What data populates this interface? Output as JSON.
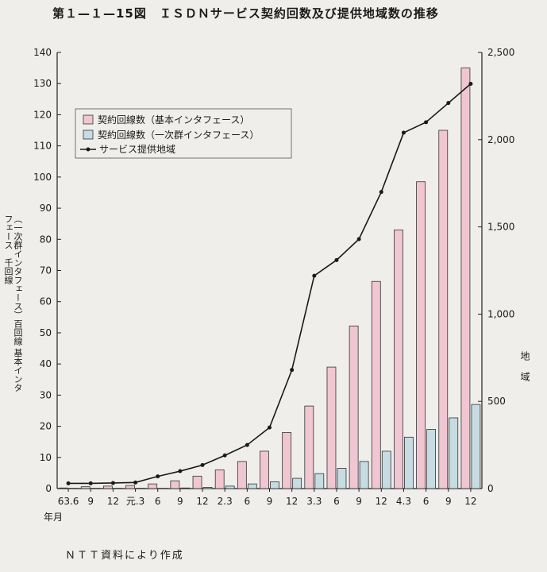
{
  "title": "第１—１—15図　ＩＳＤＮサービス契約回数及び提供地域数の推移",
  "source": "ＮＴＴ資料により作成",
  "colors": {
    "background": "#efeeea",
    "bar_basic": "#f0c6d2",
    "bar_primary": "#c6dbe2",
    "line": "#1a1a1a"
  },
  "chart_data": {
    "type": "bar",
    "categories": [
      "63.6",
      "9",
      "12",
      "元.3",
      "6",
      "9",
      "12",
      "2.3",
      "6",
      "9",
      "12",
      "3.3",
      "6",
      "9",
      "12",
      "4.3",
      "6",
      "9",
      "12"
    ],
    "x_unit_label": "年月",
    "ylabel_left": "（一次群インタフェース）百回線 基本インタフェース　千回線",
    "ylabel_right": "地域",
    "ylim_left": [
      0,
      140
    ],
    "ylim_right": [
      0,
      2500
    ],
    "yticks_left": [
      0,
      10,
      20,
      30,
      40,
      50,
      60,
      70,
      80,
      90,
      100,
      110,
      120,
      130,
      140
    ],
    "yticks_right": [
      0,
      500,
      1000,
      1500,
      2000,
      2500
    ],
    "ytick_labels_right": [
      "0",
      "500",
      "1,000",
      "1,500",
      "2,000",
      "2,500"
    ],
    "legend_position": "top-left",
    "series": [
      {
        "name": "契約回線数（基本インタフェース）",
        "kind": "bar",
        "axis": "left",
        "values": [
          0.2,
          0.6,
          0.8,
          1.0,
          1.5,
          2.5,
          4.0,
          6.0,
          8.7,
          12.0,
          18.0,
          26.5,
          39.0,
          52.2,
          66.5,
          83.0,
          98.5,
          115.0,
          135.0
        ]
      },
      {
        "name": "契約回線数（一次群インタフェース）",
        "kind": "bar",
        "axis": "left",
        "values": [
          0.1,
          0.1,
          0.1,
          0.1,
          0.1,
          0.2,
          0.4,
          0.8,
          1.5,
          2.2,
          3.3,
          4.8,
          6.5,
          8.7,
          12.0,
          16.5,
          19.0,
          22.7,
          27.0
        ]
      },
      {
        "name": "サービス提供地域",
        "kind": "line",
        "axis": "right",
        "values": [
          30,
          30,
          32,
          35,
          70,
          100,
          135,
          190,
          250,
          350,
          680,
          1220,
          1310,
          1430,
          1700,
          2040,
          2100,
          2210,
          2320
        ]
      }
    ]
  }
}
